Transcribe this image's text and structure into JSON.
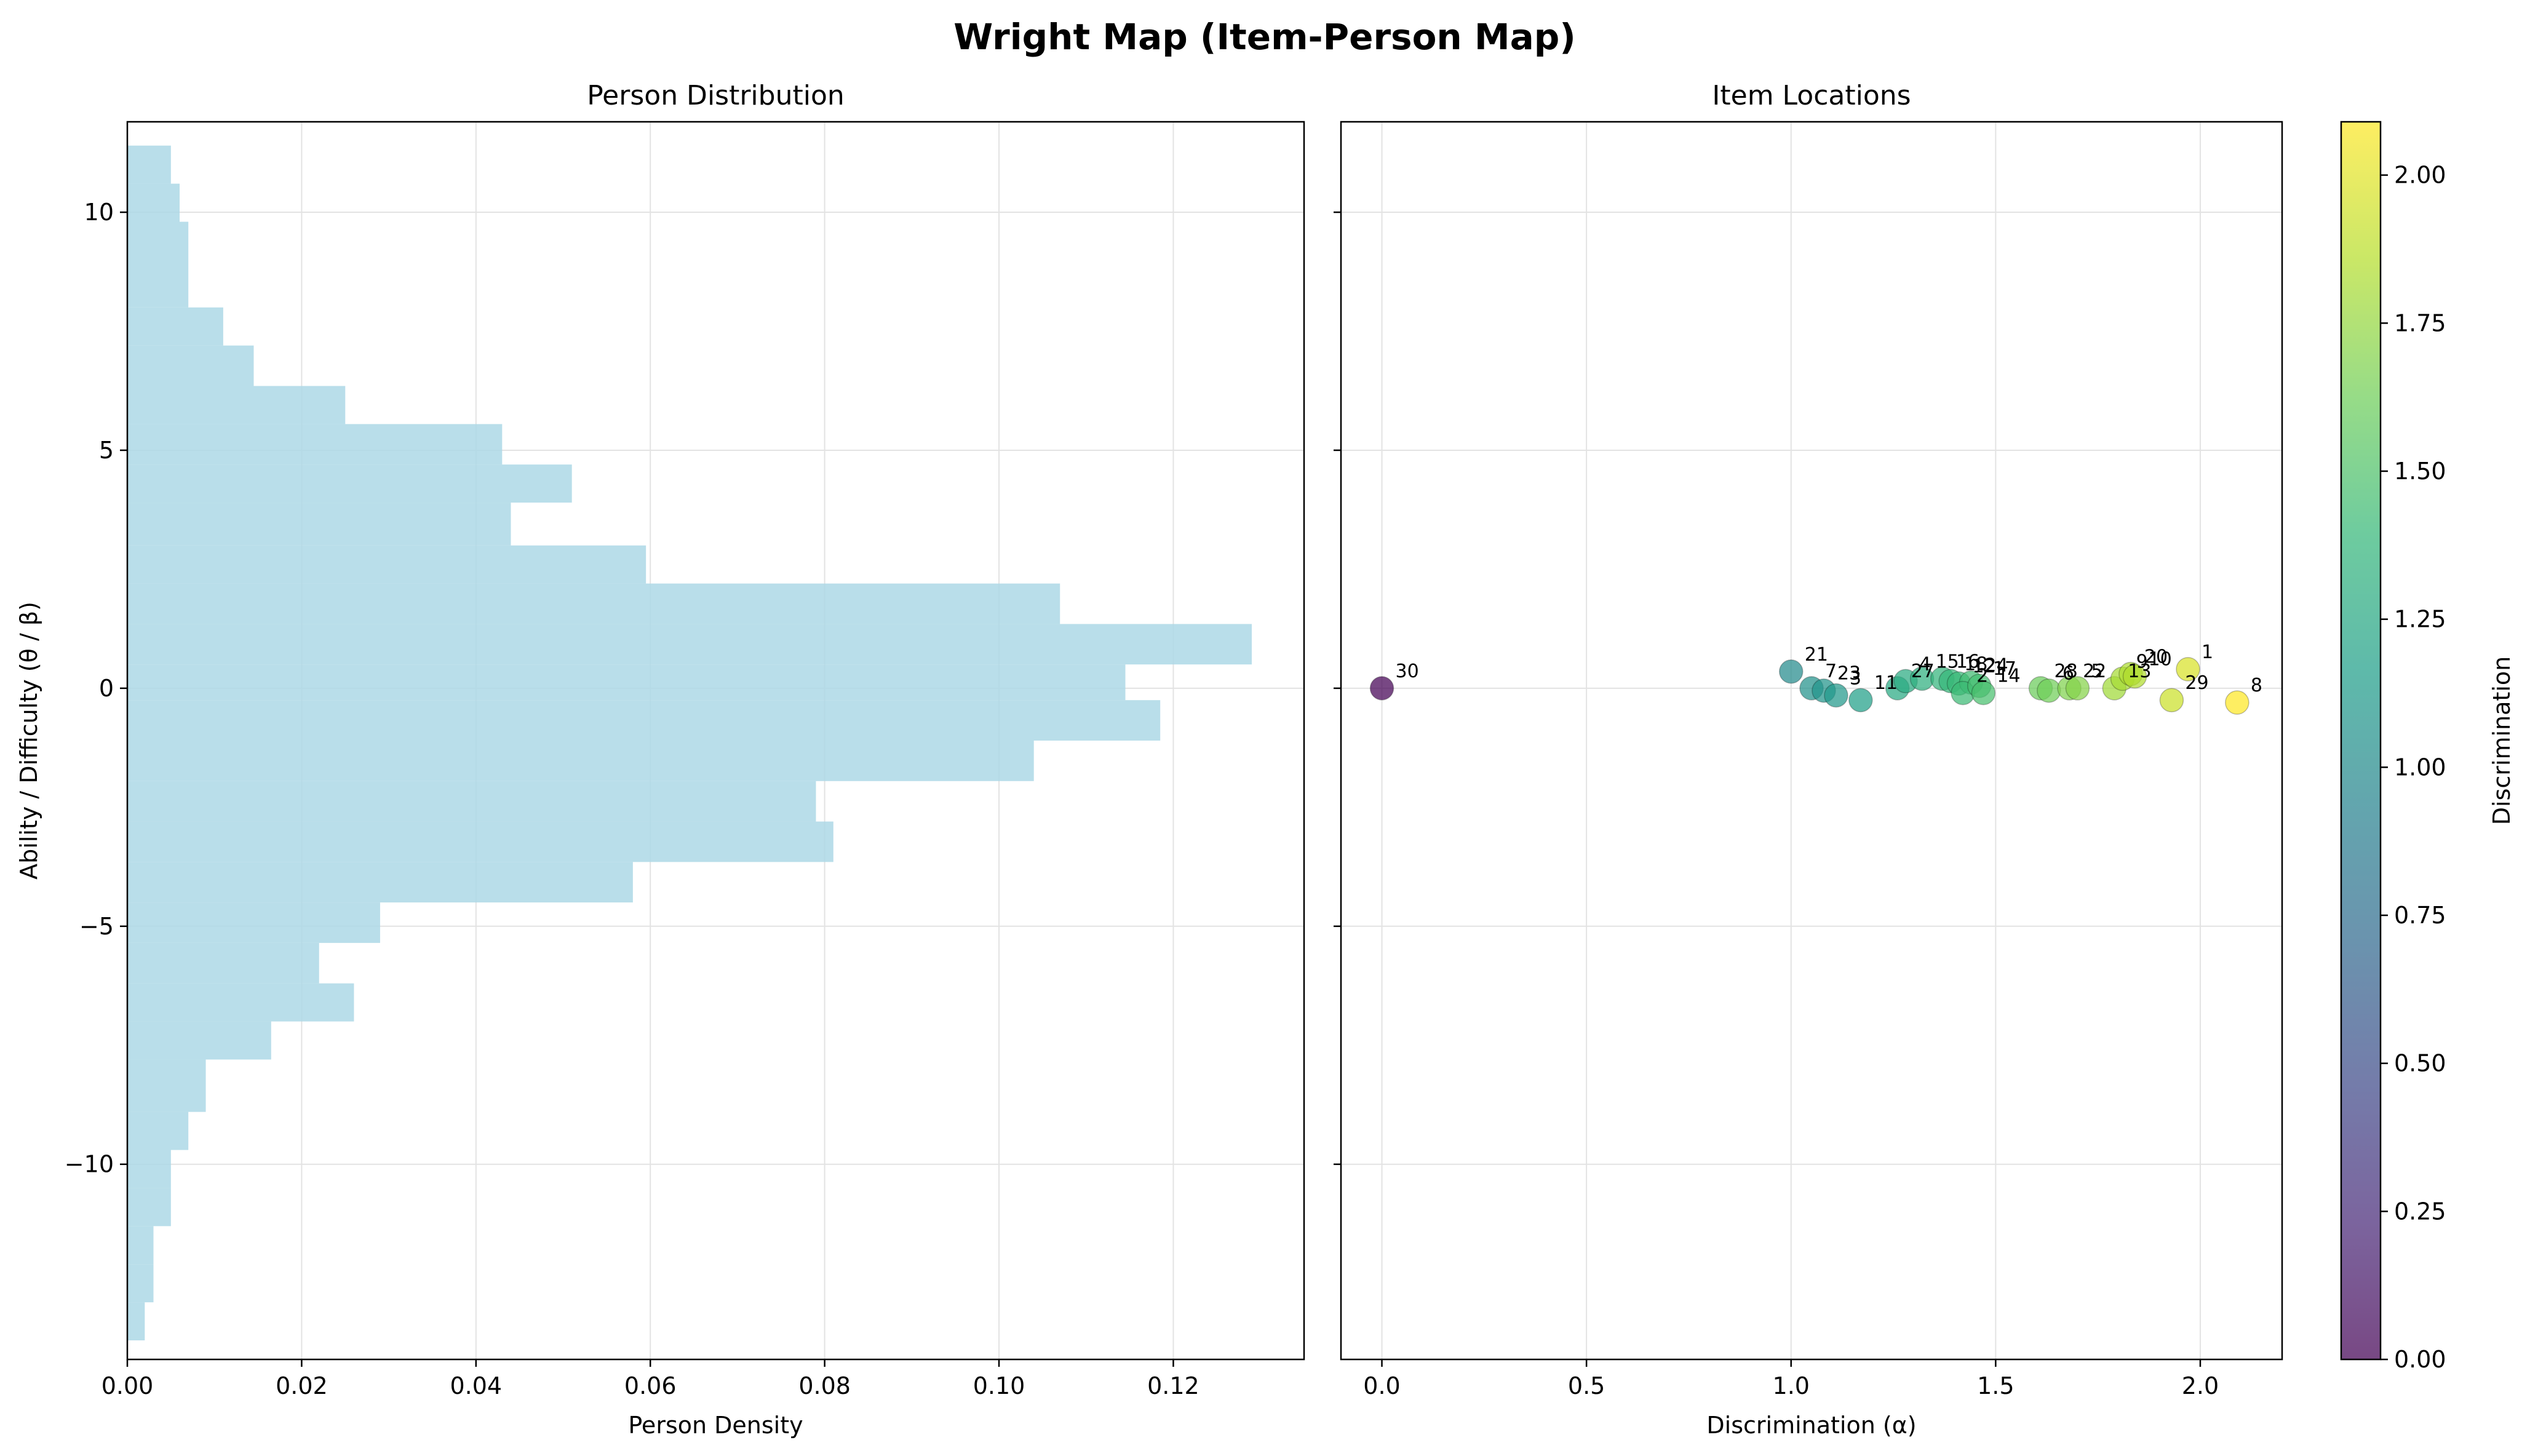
{
  "figure": {
    "title": "Wright Map (Item-Person Map)"
  },
  "chart_data": [
    {
      "type": "bar",
      "orientation": "horizontal",
      "title": "Person Distribution",
      "xlabel": "Person Density",
      "ylabel": "Ability / Difficulty (θ / β)",
      "xlim": [
        0,
        0.135
      ],
      "ylim": [
        -14.1,
        11.9
      ],
      "xticks": [
        0.0,
        0.02,
        0.04,
        0.06,
        0.08,
        0.1,
        0.12
      ],
      "xtick_labels": [
        "0.00",
        "0.02",
        "0.04",
        "0.06",
        "0.08",
        "0.10",
        "0.12"
      ],
      "yticks": [
        -10,
        -5,
        0,
        5,
        10
      ],
      "ytick_labels": [
        "−10",
        "−5",
        "0",
        "5",
        "10"
      ],
      "grid": true,
      "bar_color": "#add8e6",
      "bins": [
        {
          "y0": -13.7,
          "y1": -12.9,
          "density": 0.002
        },
        {
          "y0": -12.9,
          "y1": -12.1,
          "density": 0.003
        },
        {
          "y0": -12.1,
          "y1": -11.3,
          "density": 0.003
        },
        {
          "y0": -11.3,
          "y1": -10.5,
          "density": 0.005
        },
        {
          "y0": -10.5,
          "y1": -9.7,
          "density": 0.005
        },
        {
          "y0": -9.7,
          "y1": -8.9,
          "density": 0.007
        },
        {
          "y0": -8.9,
          "y1": -7.8,
          "density": 0.009
        },
        {
          "y0": -7.8,
          "y1": -7.0,
          "density": 0.0165
        },
        {
          "y0": -7.0,
          "y1": -6.2,
          "density": 0.026
        },
        {
          "y0": -6.2,
          "y1": -5.35,
          "density": 0.022
        },
        {
          "y0": -5.35,
          "y1": -4.5,
          "density": 0.029
        },
        {
          "y0": -4.5,
          "y1": -3.65,
          "density": 0.058
        },
        {
          "y0": -3.65,
          "y1": -2.8,
          "density": 0.081
        },
        {
          "y0": -2.8,
          "y1": -1.95,
          "density": 0.079
        },
        {
          "y0": -1.95,
          "y1": -1.1,
          "density": 0.104
        },
        {
          "y0": -1.1,
          "y1": -0.25,
          "density": 0.1185
        },
        {
          "y0": -0.25,
          "y1": 0.5,
          "density": 0.1145
        },
        {
          "y0": 0.5,
          "y1": 1.35,
          "density": 0.129
        },
        {
          "y0": 1.35,
          "y1": 2.2,
          "density": 0.107
        },
        {
          "y0": 2.2,
          "y1": 3.0,
          "density": 0.0595
        },
        {
          "y0": 3.0,
          "y1": 3.9,
          "density": 0.044
        },
        {
          "y0": 3.9,
          "y1": 4.7,
          "density": 0.051
        },
        {
          "y0": 4.7,
          "y1": 5.55,
          "density": 0.043
        },
        {
          "y0": 5.55,
          "y1": 6.35,
          "density": 0.025
        },
        {
          "y0": 6.35,
          "y1": 7.2,
          "density": 0.0145
        },
        {
          "y0": 7.2,
          "y1": 8.0,
          "density": 0.011
        },
        {
          "y0": 8.0,
          "y1": 9.8,
          "density": 0.007
        },
        {
          "y0": 9.8,
          "y1": 10.6,
          "density": 0.006
        },
        {
          "y0": 10.6,
          "y1": 11.4,
          "density": 0.005
        }
      ]
    },
    {
      "type": "scatter",
      "title": "Item Locations",
      "xlabel": "Discrimination (α)",
      "xlim": [
        -0.1,
        2.2
      ],
      "ylim": [
        -14.1,
        11.9
      ],
      "xticks": [
        0.0,
        0.5,
        1.0,
        1.5,
        2.0
      ],
      "xtick_labels": [
        "0.0",
        "0.5",
        "1.0",
        "1.5",
        "2.0"
      ],
      "grid": true,
      "points": [
        {
          "label": "30",
          "x": 0.0,
          "y": 0.0
        },
        {
          "label": "21",
          "x": 1.0,
          "y": 0.35
        },
        {
          "label": "7",
          "x": 1.05,
          "y": 0.0
        },
        {
          "label": "23",
          "x": 1.08,
          "y": -0.05
        },
        {
          "label": "3",
          "x": 1.11,
          "y": -0.15
        },
        {
          "label": "11",
          "x": 1.17,
          "y": -0.25
        },
        {
          "label": "27",
          "x": 1.26,
          "y": 0.0
        },
        {
          "label": "4",
          "x": 1.28,
          "y": 0.15
        },
        {
          "label": "15",
          "x": 1.32,
          "y": 0.2
        },
        {
          "label": "16",
          "x": 1.37,
          "y": 0.2
        },
        {
          "label": "18",
          "x": 1.39,
          "y": 0.15
        },
        {
          "label": "12",
          "x": 1.41,
          "y": 0.1
        },
        {
          "label": "24",
          "x": 1.44,
          "y": 0.12
        },
        {
          "label": "2",
          "x": 1.42,
          "y": -0.1
        },
        {
          "label": "17",
          "x": 1.46,
          "y": 0.05
        },
        {
          "label": "14",
          "x": 1.47,
          "y": -0.1
        },
        {
          "label": "28",
          "x": 1.61,
          "y": 0.0
        },
        {
          "label": "6",
          "x": 1.63,
          "y": -0.05
        },
        {
          "label": "22",
          "x": 1.68,
          "y": 0.0
        },
        {
          "label": "5",
          "x": 1.7,
          "y": 0.0
        },
        {
          "label": "13",
          "x": 1.79,
          "y": 0.0
        },
        {
          "label": "9",
          "x": 1.81,
          "y": 0.2
        },
        {
          "label": "20",
          "x": 1.83,
          "y": 0.3
        },
        {
          "label": "10",
          "x": 1.84,
          "y": 0.25
        },
        {
          "label": "1",
          "x": 1.97,
          "y": 0.4
        },
        {
          "label": "29",
          "x": 1.93,
          "y": -0.25
        },
        {
          "label": "8",
          "x": 2.09,
          "y": -0.3
        }
      ]
    }
  ],
  "colorbar": {
    "label": "Discrimination",
    "min": 0.0,
    "max": 2.09,
    "ticks": [
      0.0,
      0.25,
      0.5,
      0.75,
      1.0,
      1.25,
      1.5,
      1.75,
      2.0
    ],
    "tick_labels": [
      "0.00",
      "0.25",
      "0.50",
      "0.75",
      "1.00",
      "1.25",
      "1.50",
      "1.75",
      "2.00"
    ],
    "colormap": "viridis"
  }
}
